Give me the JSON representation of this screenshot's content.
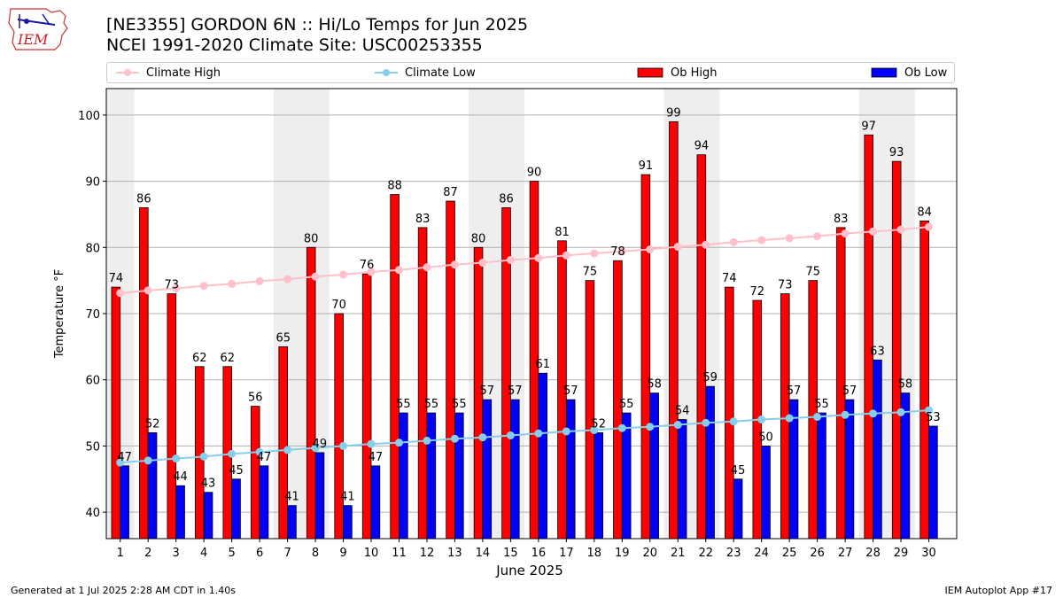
{
  "header": {
    "title_line1": "[NE3355] GORDON 6N :: Hi/Lo Temps for Jun 2025",
    "title_line2": "NCEI 1991-2020 Climate Site: USC00253355",
    "logo_text": "IEM"
  },
  "footer": {
    "left": "Generated at 1 Jul 2025 2:28 AM CDT in 1.40s",
    "right": "IEM Autoplot App #17"
  },
  "colors": {
    "ob_high": "#ff0000",
    "ob_low": "#0000ff",
    "climate_high": "#ffc0cb",
    "climate_low": "#87ceeb",
    "weekend_shade": "#eeeeee",
    "grid": "#b0b0b0"
  },
  "chart_data": {
    "type": "bar",
    "xlabel": "June 2025",
    "ylabel": "Temperature °F",
    "ylim": [
      36,
      104
    ],
    "yticks": [
      40,
      50,
      60,
      70,
      80,
      90,
      100
    ],
    "grid": "horizontal",
    "legend_position": "top",
    "categories": [
      1,
      2,
      3,
      4,
      5,
      6,
      7,
      8,
      9,
      10,
      11,
      12,
      13,
      14,
      15,
      16,
      17,
      18,
      19,
      20,
      21,
      22,
      23,
      24,
      25,
      26,
      27,
      28,
      29,
      30
    ],
    "shaded_days": [
      1,
      7,
      8,
      14,
      15,
      21,
      22,
      28,
      29
    ],
    "series": [
      {
        "name": "Ob High",
        "kind": "bar",
        "values": [
          74,
          86,
          73,
          62,
          62,
          56,
          65,
          80,
          70,
          76,
          88,
          83,
          87,
          80,
          86,
          90,
          81,
          75,
          78,
          91,
          99,
          94,
          74,
          72,
          73,
          75,
          83,
          97,
          93,
          84
        ]
      },
      {
        "name": "Ob Low",
        "kind": "bar",
        "values": [
          47,
          52,
          44,
          43,
          45,
          47,
          41,
          49,
          41,
          47,
          55,
          55,
          55,
          57,
          57,
          61,
          57,
          52,
          55,
          58,
          54,
          59,
          45,
          50,
          57,
          55,
          57,
          63,
          58,
          53
        ]
      },
      {
        "name": "Climate High",
        "kind": "line",
        "values": [
          73.1,
          73.5,
          73.8,
          74.2,
          74.5,
          74.9,
          75.2,
          75.6,
          75.9,
          76.3,
          76.6,
          77.0,
          77.4,
          77.7,
          78.1,
          78.4,
          78.8,
          79.1,
          79.4,
          79.7,
          80.1,
          80.4,
          80.8,
          81.1,
          81.4,
          81.7,
          82.1,
          82.4,
          82.7,
          83.1
        ]
      },
      {
        "name": "Climate Low",
        "kind": "line",
        "values": [
          47.5,
          47.8,
          48.1,
          48.4,
          48.8,
          49.1,
          49.4,
          49.7,
          50.0,
          50.3,
          50.5,
          50.8,
          51.1,
          51.3,
          51.6,
          51.9,
          52.2,
          52.4,
          52.7,
          52.9,
          53.2,
          53.5,
          53.7,
          54.0,
          54.2,
          54.4,
          54.7,
          54.9,
          55.1,
          55.4
        ]
      }
    ]
  }
}
